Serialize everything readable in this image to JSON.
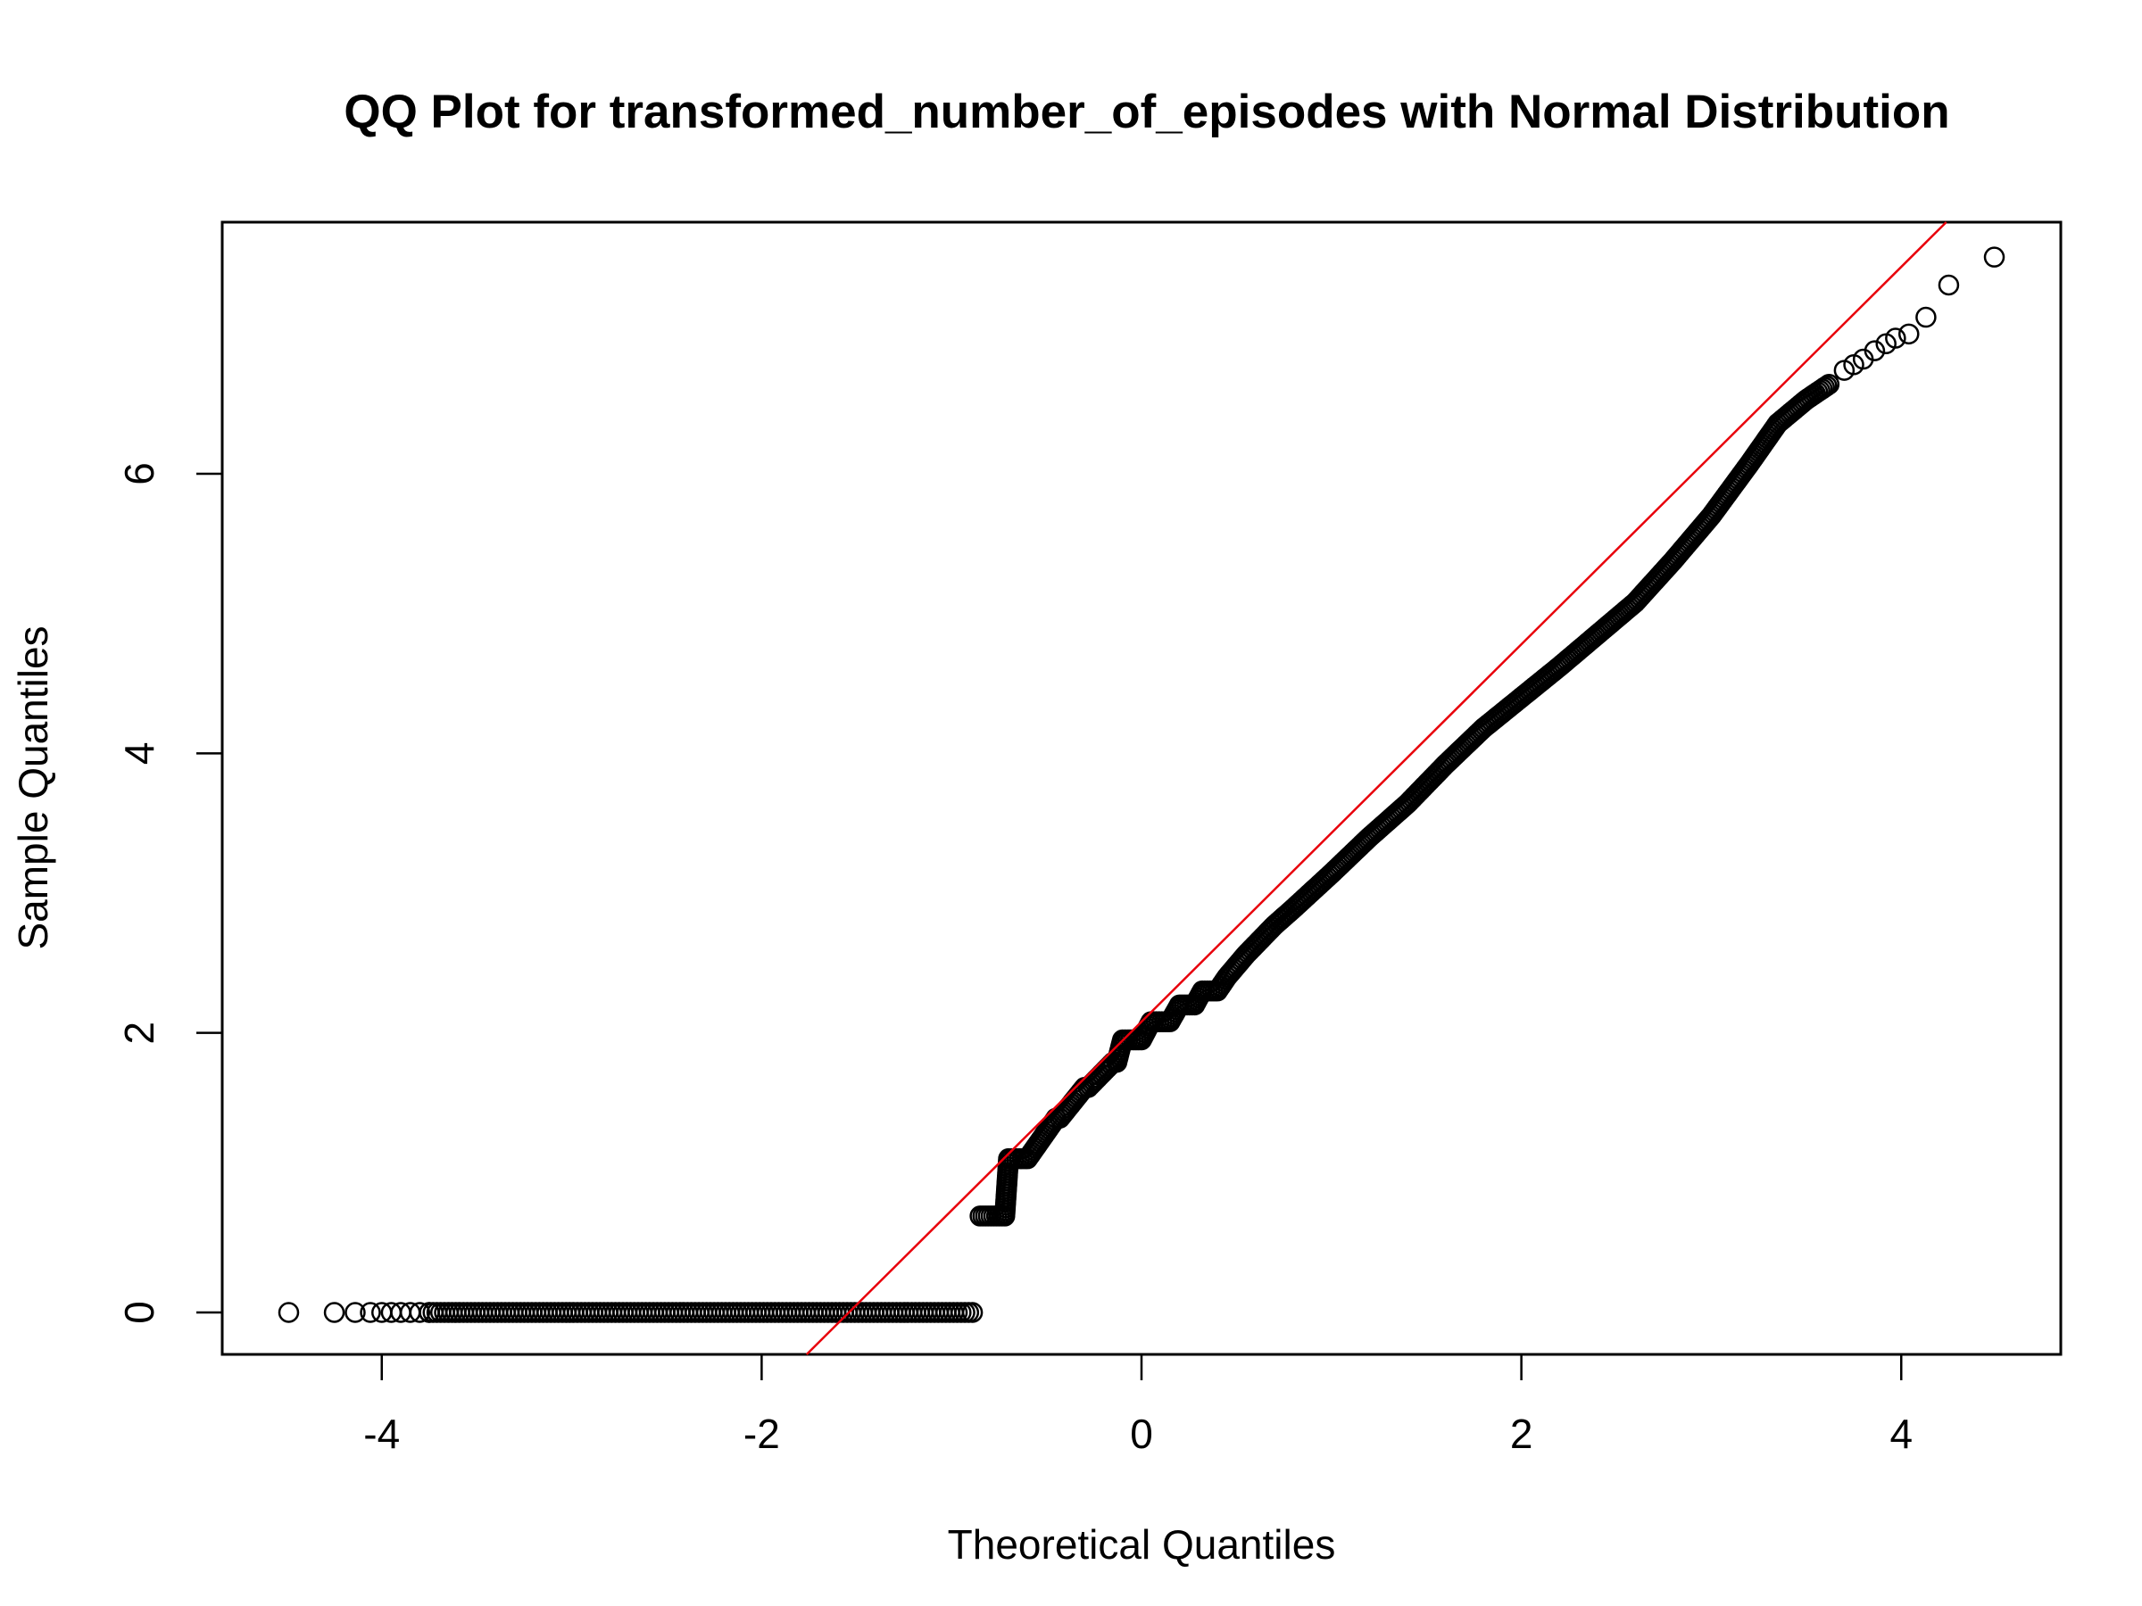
{
  "chart_data": {
    "type": "scatter",
    "title": "QQ Plot for transformed_number_of_episodes with Normal Distribution",
    "xlabel": "Theoretical Quantiles",
    "ylabel": "Sample Quantiles",
    "xlim": [
      -4.84,
      4.84
    ],
    "ylim": [
      -0.3,
      7.8
    ],
    "x_ticks": [
      -4,
      -2,
      0,
      2,
      4
    ],
    "x_tick_labels": [
      "-4",
      "-2",
      "0",
      "2",
      "4"
    ],
    "y_ticks": [
      0,
      2,
      4,
      6
    ],
    "y_tick_labels": [
      "0",
      "2",
      "4",
      "6"
    ],
    "grid": false,
    "legend": "none",
    "colors": {
      "points": "#000000",
      "reference_line": "#e8000b"
    },
    "reference_line": {
      "intercept": 2.08,
      "slope": 1.35
    },
    "points": [
      [
        -4.49,
        0
      ],
      [
        -4.25,
        0
      ],
      [
        -4.14,
        0
      ],
      [
        -4.06,
        0
      ],
      [
        -4.0,
        0
      ],
      [
        -3.95,
        0
      ],
      [
        -3.9,
        0
      ],
      [
        -3.85,
        0
      ],
      [
        -3.8,
        0
      ],
      [
        -3.75,
        0
      ],
      [
        -0.85,
        0.69
      ],
      [
        -0.72,
        0.69
      ],
      [
        -0.7,
        1.1
      ],
      [
        -0.6,
        1.1
      ],
      [
        -0.45,
        1.39
      ],
      [
        -0.43,
        1.39
      ],
      [
        -0.3,
        1.61
      ],
      [
        -0.28,
        1.61
      ],
      [
        -0.15,
        1.79
      ],
      [
        -0.13,
        1.79
      ],
      [
        -0.1,
        1.95
      ],
      [
        0.0,
        1.95
      ],
      [
        0.05,
        2.08
      ],
      [
        0.15,
        2.08
      ],
      [
        0.2,
        2.2
      ],
      [
        0.28,
        2.2
      ],
      [
        0.32,
        2.3
      ],
      [
        0.4,
        2.3
      ],
      [
        0.45,
        2.4
      ],
      [
        0.55,
        2.56
      ],
      [
        0.7,
        2.77
      ],
      [
        0.8,
        2.89
      ],
      [
        1.0,
        3.14
      ],
      [
        1.2,
        3.4
      ],
      [
        1.4,
        3.64
      ],
      [
        1.6,
        3.92
      ],
      [
        1.8,
        4.18
      ],
      [
        2.0,
        4.4
      ],
      [
        2.2,
        4.62
      ],
      [
        2.4,
        4.85
      ],
      [
        2.6,
        5.08
      ],
      [
        2.8,
        5.38
      ],
      [
        3.0,
        5.7
      ],
      [
        3.2,
        6.07
      ],
      [
        3.35,
        6.36
      ],
      [
        3.5,
        6.53
      ],
      [
        3.62,
        6.64
      ],
      [
        3.7,
        6.74
      ],
      [
        3.75,
        6.78
      ],
      [
        3.8,
        6.82
      ],
      [
        3.86,
        6.88
      ],
      [
        3.92,
        6.93
      ],
      [
        3.97,
        6.97
      ],
      [
        4.04,
        7.0
      ],
      [
        4.13,
        7.12
      ],
      [
        4.25,
        7.35
      ],
      [
        4.49,
        7.55
      ]
    ]
  }
}
